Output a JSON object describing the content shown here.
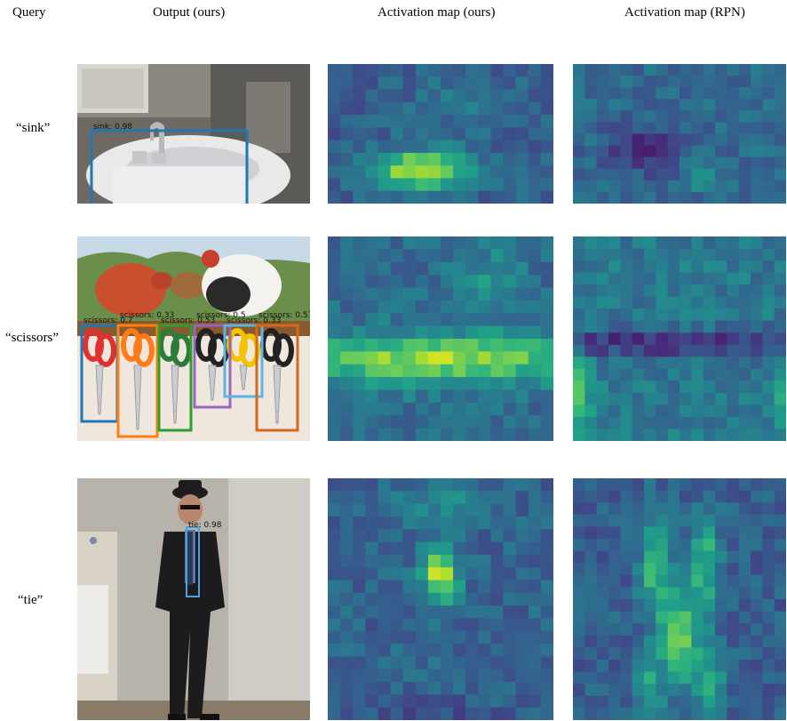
{
  "headers": {
    "query": "Query",
    "output": "Output (ours)",
    "act_ours": "Activation map (ours)",
    "act_rpn": "Activation map (RPN)"
  },
  "rows": [
    {
      "query": "“sink”",
      "detections": [
        {
          "label": "sink: 0.98",
          "color": "#1f77b4"
        }
      ]
    },
    {
      "query": "“scissors”",
      "detections": [
        {
          "label": "scissors: 0.7",
          "color": "#1f77b4"
        },
        {
          "label": "scissors: 0.33",
          "color": "#ff7f0e"
        },
        {
          "label": "scissors: 0.53",
          "color": "#2ca02c"
        },
        {
          "label": "scissors: 0.5",
          "color": "#9467bd"
        },
        {
          "label": "scissors: 0.33",
          "color": "#5ab4e5"
        },
        {
          "label": "scissors: 0.57",
          "color": "#d2691e"
        }
      ]
    },
    {
      "query": "“tie”",
      "detections": [
        {
          "label": "tie: 0.98",
          "color": "#4aa3df"
        }
      ]
    }
  ],
  "colormap": "viridis"
}
